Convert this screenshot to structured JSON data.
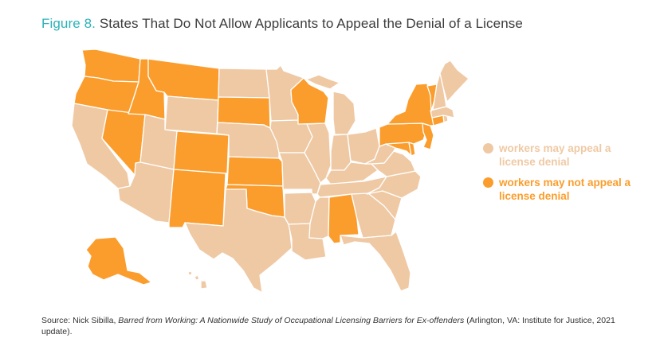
{
  "title": {
    "prefix": "Figure 8.",
    "text": "States That Do Not Allow Applicants to Appeal the Denial of a License"
  },
  "colors": {
    "may_appeal": "#efc9a4",
    "may_not_appeal": "#fb9d2c",
    "border": "#ffffff",
    "title_accent": "#2cb3b9"
  },
  "legend": {
    "may_appeal": {
      "line1": "workers may appeal a",
      "line2": "license denial"
    },
    "may_not_appeal": {
      "line1": "workers may not appeal a",
      "line2": "license denial"
    }
  },
  "states_may_not_appeal": [
    "WA",
    "OR",
    "ID",
    "MT",
    "NV",
    "CO",
    "NM",
    "SD",
    "KS",
    "OK",
    "WI",
    "AL",
    "NY",
    "VT",
    "PA",
    "CT",
    "NJ",
    "DE",
    "MD",
    "AK"
  ],
  "source": {
    "prefix": "Source: Nick Sibilla, ",
    "italic": "Barred from Working: A Nationwide Study of Occupational Licensing Barriers for Ex-offenders",
    "suffix": " (Arlington, VA: Institute for Justice, 2021 update)."
  }
}
